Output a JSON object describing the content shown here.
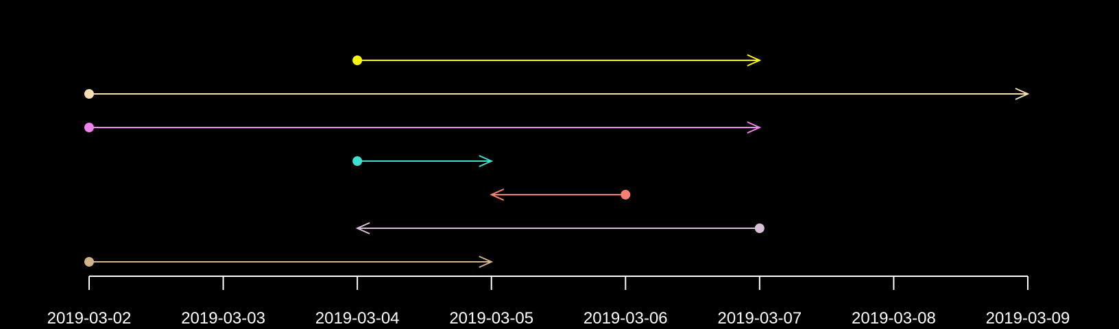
{
  "chart_data": {
    "type": "timeline-arrows",
    "title": "",
    "xlabel": "",
    "ylabel": "",
    "x_axis": {
      "ticks": [
        "2019-03-02",
        "2019-03-03",
        "2019-03-04",
        "2019-03-05",
        "2019-03-06",
        "2019-03-07",
        "2019-03-08",
        "2019-03-09"
      ],
      "xlim": [
        "2019-03-02",
        "2019-03-09"
      ]
    },
    "grid": false,
    "legend": "none",
    "background": "#000000",
    "axis_color": "#ffffff",
    "arrows": [
      {
        "start": "2019-03-04",
        "end": "2019-03-07",
        "color": "#ffff00"
      },
      {
        "start": "2019-03-02",
        "end": "2019-03-09",
        "color": "#f5deb3"
      },
      {
        "start": "2019-03-02",
        "end": "2019-03-07",
        "color": "#ee82ee"
      },
      {
        "start": "2019-03-04",
        "end": "2019-03-05",
        "color": "#40e0d0"
      },
      {
        "start": "2019-03-06",
        "end": "2019-03-05",
        "color": "#fa8072"
      },
      {
        "start": "2019-03-07",
        "end": "2019-03-04",
        "color": "#d8bfd8"
      },
      {
        "start": "2019-03-02",
        "end": "2019-03-05",
        "color": "#d2b48c"
      }
    ]
  }
}
